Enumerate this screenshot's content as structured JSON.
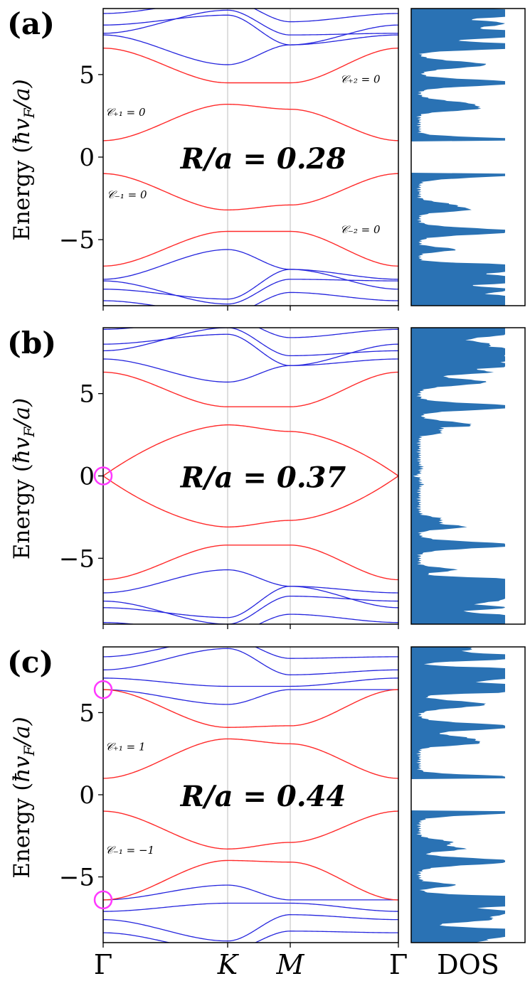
{
  "figure": {
    "ylabel_main": "Energy (",
    "ylabel_math": "ħv",
    "ylabel_sub": "F",
    "ylabel_end": "/a)",
    "x_ticks": [
      "Γ",
      "K",
      "M",
      "Γ"
    ],
    "dos_label": "DOS",
    "y_ticks": [
      "5",
      "0",
      "−5"
    ]
  },
  "colors": {
    "topological_band": "#ff2a2a",
    "other_band": "#2525dd",
    "dos_fill": "#2a72b4",
    "crossing_marker": "#ff38ff"
  },
  "chart_data": [
    {
      "panel": "(a)",
      "type": "line",
      "title": "R/a = 0.28",
      "xlabel": "",
      "ylabel": "Energy (ħv_F/a)",
      "x_ticks": [
        "Γ",
        "K",
        "M",
        "Γ"
      ],
      "y_ticks": [
        5,
        0,
        -5
      ],
      "ylim": [
        -9,
        9
      ],
      "annotations": [
        {
          "text": "𝒞₊₁ = 0",
          "near": "K, E≈2.7"
        },
        {
          "text": "𝒞₋₁ = 0",
          "near": "K, E≈-2.7"
        },
        {
          "text": "𝒞₊₂ = 0",
          "near": "M–Γ, E≈4.6"
        },
        {
          "text": "𝒞₋₂ = 0",
          "near": "M–Γ, E≈-4.6"
        }
      ],
      "band_crossings": [],
      "red_bands_key_points": {
        "x": [
          "Γ",
          "K",
          "M",
          "Γ"
        ],
        "series": [
          {
            "name": "C+2 band",
            "values": [
              6.6,
              4.5,
              4.5,
              6.6
            ]
          },
          {
            "name": "C+1 band",
            "values": [
              1.0,
              3.2,
              2.9,
              1.0
            ]
          },
          {
            "name": "C-1 band",
            "values": [
              -1.0,
              -3.2,
              -2.9,
              -1.0
            ]
          },
          {
            "name": "C-2 band",
            "values": [
              -6.6,
              -4.5,
              -4.5,
              -6.6
            ]
          }
        ]
      }
    },
    {
      "panel": "(b)",
      "type": "line",
      "title": "R/a = 0.37",
      "xlabel": "",
      "ylabel": "Energy (ħv_F/a)",
      "x_ticks": [
        "Γ",
        "K",
        "M",
        "Γ"
      ],
      "y_ticks": [
        5,
        0,
        -5
      ],
      "ylim": [
        -9,
        9
      ],
      "annotations": [],
      "band_crossings": [
        {
          "at": "Γ",
          "energy": 0
        }
      ],
      "red_bands_key_points": {
        "x": [
          "Γ",
          "K",
          "M",
          "Γ"
        ],
        "series": [
          {
            "name": "upper band 2",
            "values": [
              6.3,
              4.2,
              4.2,
              6.3
            ]
          },
          {
            "name": "upper band 1",
            "values": [
              0.0,
              3.1,
              2.7,
              0.0
            ]
          },
          {
            "name": "lower band 1",
            "values": [
              0.0,
              -3.1,
              -2.7,
              0.0
            ]
          },
          {
            "name": "lower band 2",
            "values": [
              -6.3,
              -4.2,
              -4.2,
              -6.3
            ]
          }
        ]
      }
    },
    {
      "panel": "(c)",
      "type": "line",
      "title": "R/a = 0.44",
      "xlabel": "",
      "ylabel": "Energy (ħv_F/a)",
      "x_ticks": [
        "Γ",
        "K",
        "M",
        "Γ"
      ],
      "y_ticks": [
        5,
        0,
        -5
      ],
      "ylim": [
        -9,
        9
      ],
      "annotations": [
        {
          "text": "𝒞₊₁ = 1",
          "near": "Γ–K, E≈2.7"
        },
        {
          "text": "𝒞₋₁ = −1",
          "near": "Γ–K, E≈-3.2"
        }
      ],
      "band_crossings": [
        {
          "at": "Γ",
          "energy": 6.4
        },
        {
          "at": "Γ",
          "energy": -6.4
        }
      ],
      "red_bands_key_points": {
        "x": [
          "Γ",
          "K",
          "M",
          "Γ"
        ],
        "series": [
          {
            "name": "upper band 2",
            "values": [
              6.4,
              4.1,
              4.2,
              6.4
            ]
          },
          {
            "name": "upper band 1",
            "values": [
              1.0,
              3.4,
              3.1,
              1.0
            ]
          },
          {
            "name": "lower band 1",
            "values": [
              -1.0,
              -3.3,
              -2.9,
              -1.0
            ]
          },
          {
            "name": "lower band 2",
            "values": [
              -6.4,
              -4.0,
              -4.1,
              -6.4
            ]
          }
        ]
      }
    }
  ],
  "panels": [
    {
      "letter": "(a)",
      "title": "R/a = 0.28"
    },
    {
      "letter": "(b)",
      "title": "R/a = 0.37"
    },
    {
      "letter": "(c)",
      "title": "R/a = 0.44"
    }
  ]
}
